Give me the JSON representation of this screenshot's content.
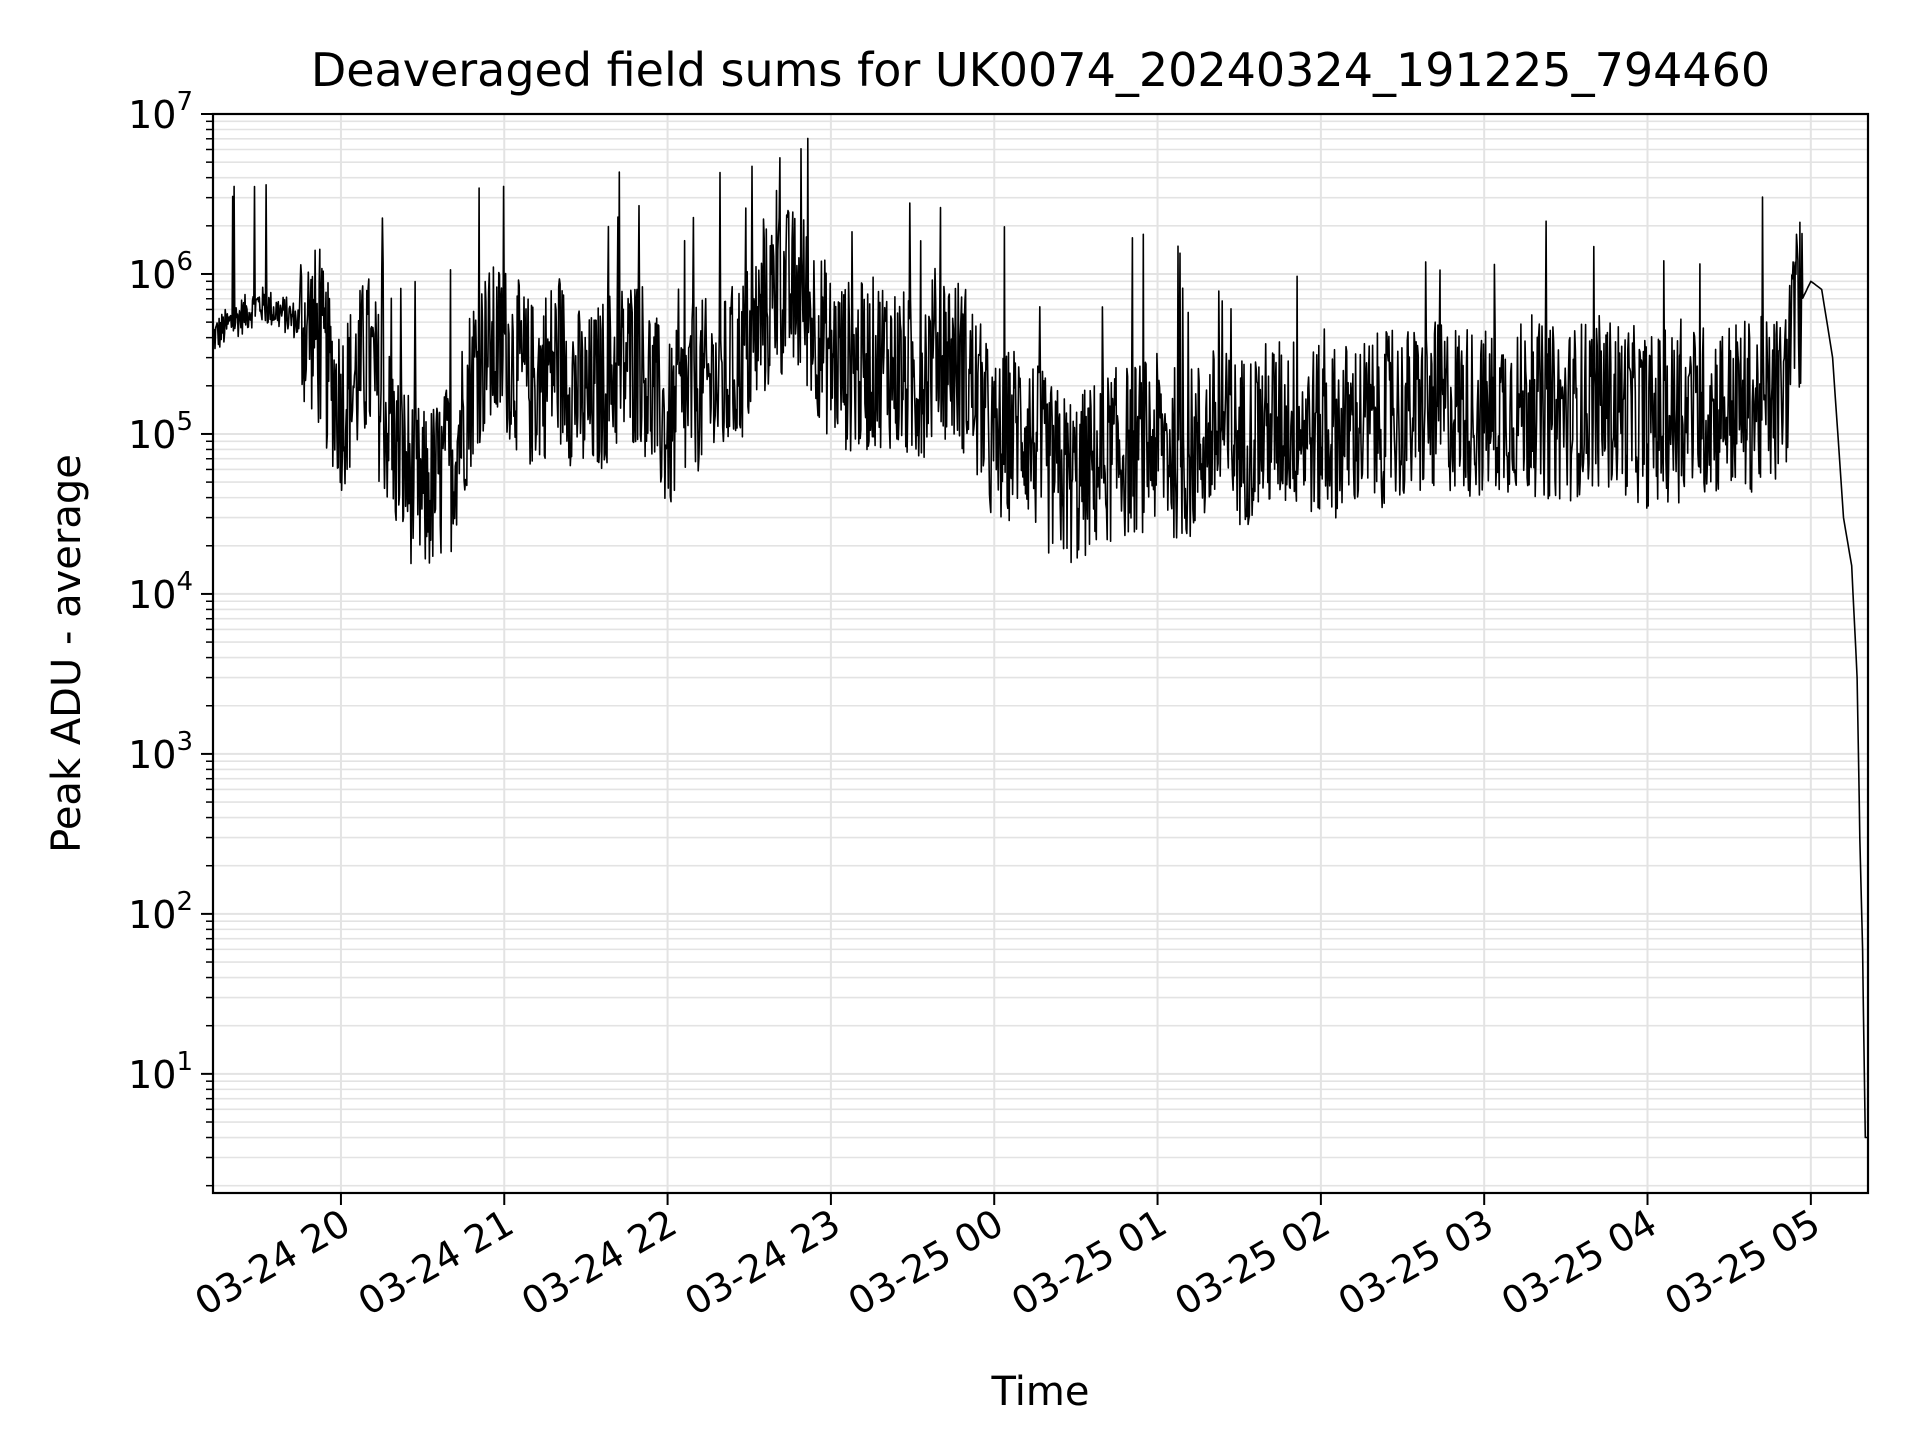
{
  "chart_data": {
    "type": "line",
    "title": "Deaveraged field sums for UK0074_20240324_191225_794460",
    "xlabel": "Time",
    "ylabel": "Peak ADU - average",
    "yscale": "log",
    "ylim": [
      1.8,
      10000000
    ],
    "xlim": [
      "2024-03-24 19:13",
      "2024-03-25 05:21"
    ],
    "grid": true,
    "x_ticks": [
      {
        "value": "2024-03-24 20:00",
        "label": "03-24 20"
      },
      {
        "value": "2024-03-24 21:00",
        "label": "03-24 21"
      },
      {
        "value": "2024-03-24 22:00",
        "label": "03-24 22"
      },
      {
        "value": "2024-03-24 23:00",
        "label": "03-24 23"
      },
      {
        "value": "2024-03-25 00:00",
        "label": "03-25 00"
      },
      {
        "value": "2024-03-25 01:00",
        "label": "03-25 01"
      },
      {
        "value": "2024-03-25 02:00",
        "label": "03-25 02"
      },
      {
        "value": "2024-03-25 03:00",
        "label": "03-25 03"
      },
      {
        "value": "2024-03-25 04:00",
        "label": "03-25 04"
      },
      {
        "value": "2024-03-25 05:00",
        "label": "03-25 05"
      }
    ],
    "y_ticks": [
      {
        "value": 10,
        "base": "10",
        "exp": "1"
      },
      {
        "value": 100,
        "base": "10",
        "exp": "2"
      },
      {
        "value": 1000,
        "base": "10",
        "exp": "3"
      },
      {
        "value": 10000,
        "base": "10",
        "exp": "4"
      },
      {
        "value": 100000,
        "base": "10",
        "exp": "5"
      },
      {
        "value": 1000000,
        "base": "10",
        "exp": "6"
      },
      {
        "value": 10000000,
        "base": "10",
        "exp": "7"
      }
    ],
    "series": [
      {
        "color": "#000000",
        "x": [
          "2024-03-24 19:13",
          "2024-03-24 19:20",
          "2024-03-24 19:30",
          "2024-03-24 19:40",
          "2024-03-24 19:50",
          "2024-03-24 20:00",
          "2024-03-24 20:10",
          "2024-03-24 20:20",
          "2024-03-24 20:30",
          "2024-03-24 20:40",
          "2024-03-24 20:50",
          "2024-03-24 21:00",
          "2024-03-24 21:10",
          "2024-03-24 21:20",
          "2024-03-24 21:30",
          "2024-03-24 21:40",
          "2024-03-24 21:50",
          "2024-03-24 22:00",
          "2024-03-24 22:10",
          "2024-03-24 22:20",
          "2024-03-24 22:30",
          "2024-03-24 22:40",
          "2024-03-24 22:50",
          "2024-03-24 23:00",
          "2024-03-24 23:10",
          "2024-03-24 23:20",
          "2024-03-24 23:30",
          "2024-03-24 23:40",
          "2024-03-24 23:50",
          "2024-03-25 00:00",
          "2024-03-25 00:10",
          "2024-03-25 00:20",
          "2024-03-25 00:30",
          "2024-03-25 00:40",
          "2024-03-25 00:50",
          "2024-03-25 01:00",
          "2024-03-25 01:10",
          "2024-03-25 01:20",
          "2024-03-25 01:30",
          "2024-03-25 01:40",
          "2024-03-25 01:50",
          "2024-03-25 02:00",
          "2024-03-25 02:10",
          "2024-03-25 02:20",
          "2024-03-25 02:30",
          "2024-03-25 02:40",
          "2024-03-25 02:50",
          "2024-03-25 03:00",
          "2024-03-25 03:10",
          "2024-03-25 03:20",
          "2024-03-25 03:30",
          "2024-03-25 03:40",
          "2024-03-25 03:50",
          "2024-03-25 04:00",
          "2024-03-25 04:10",
          "2024-03-25 04:20",
          "2024-03-25 04:30",
          "2024-03-25 04:40",
          "2024-03-25 04:50",
          "2024-03-25 04:55",
          "2024-03-25 05:00",
          "2024-03-25 05:04",
          "2024-03-25 05:08",
          "2024-03-25 05:12",
          "2024-03-25 05:15",
          "2024-03-25 05:17",
          "2024-03-25 05:18",
          "2024-03-25 05:19",
          "2024-03-25 05:20",
          "2024-03-25 05:21"
        ],
        "y": [
          400000,
          500000,
          650000,
          550000,
          450000,
          150000,
          300000,
          80000,
          40000,
          60000,
          300000,
          350000,
          200000,
          300000,
          150000,
          250000,
          300000,
          100000,
          200000,
          200000,
          350000,
          800000,
          700000,
          300000,
          250000,
          300000,
          200000,
          350000,
          250000,
          80000,
          120000,
          60000,
          50000,
          70000,
          80000,
          90000,
          70000,
          100000,
          90000,
          110000,
          120000,
          100000,
          110000,
          120000,
          130000,
          140000,
          150000,
          130000,
          150000,
          140000,
          130000,
          160000,
          150000,
          120000,
          130000,
          140000,
          150000,
          150000,
          170000,
          600000,
          900000,
          800000,
          300000,
          30000,
          15000,
          3000,
          300,
          60,
          4,
          4
        ]
      }
    ],
    "noisy_segments_hint": "dense fluctuating trace between ~2e4 and ~5e6 until 04:55, then steep decline to ~4 at 05:20"
  }
}
